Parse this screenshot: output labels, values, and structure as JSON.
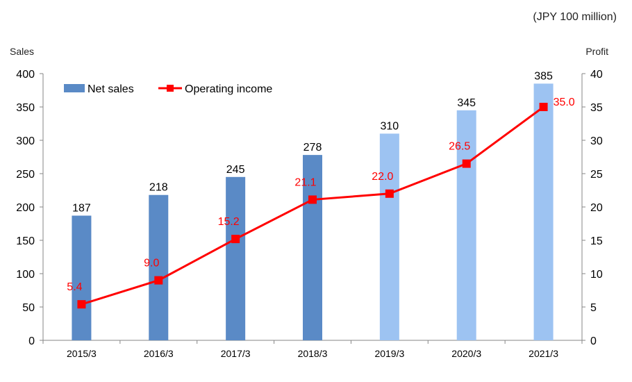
{
  "unit_note": "(JPY 100 million)",
  "chart_data": {
    "type": "bar+line",
    "title": "",
    "categories": [
      "2015/3",
      "2016/3",
      "2017/3",
      "2018/3",
      "2019/3",
      "2020/3",
      "2021/3"
    ],
    "left_axis": {
      "label": "Sales",
      "ylim": [
        0,
        400
      ],
      "ticks": [
        "0",
        "50",
        "100",
        "150",
        "200",
        "250",
        "300",
        "350",
        "400"
      ]
    },
    "right_axis": {
      "label": "Profit",
      "ylim": [
        0,
        40
      ],
      "ticks": [
        "0",
        "5",
        "10",
        "15",
        "20",
        "25",
        "30",
        "35",
        "40"
      ]
    },
    "series": [
      {
        "name": "Net sales",
        "type": "bar",
        "axis": "left",
        "values": [
          187,
          218,
          245,
          278,
          310,
          345,
          385
        ],
        "labels": [
          "187",
          "218",
          "245",
          "278",
          "310",
          "345",
          "385"
        ],
        "colors": [
          "#5a8ac6",
          "#5a8ac6",
          "#5a8ac6",
          "#5a8ac6",
          "#9dc3f2",
          "#9dc3f2",
          "#9dc3f2"
        ]
      },
      {
        "name": "Operating income",
        "type": "line",
        "axis": "right",
        "values": [
          5.4,
          9.0,
          15.2,
          21.1,
          22.0,
          26.5,
          35.0
        ],
        "labels": [
          "5.4",
          "9.0",
          "15.2",
          "21.1",
          "22.0",
          "26.5",
          "35.0"
        ],
        "color": "#ff0000"
      }
    ],
    "legend": {
      "placement": "top-left"
    },
    "grid": false
  }
}
